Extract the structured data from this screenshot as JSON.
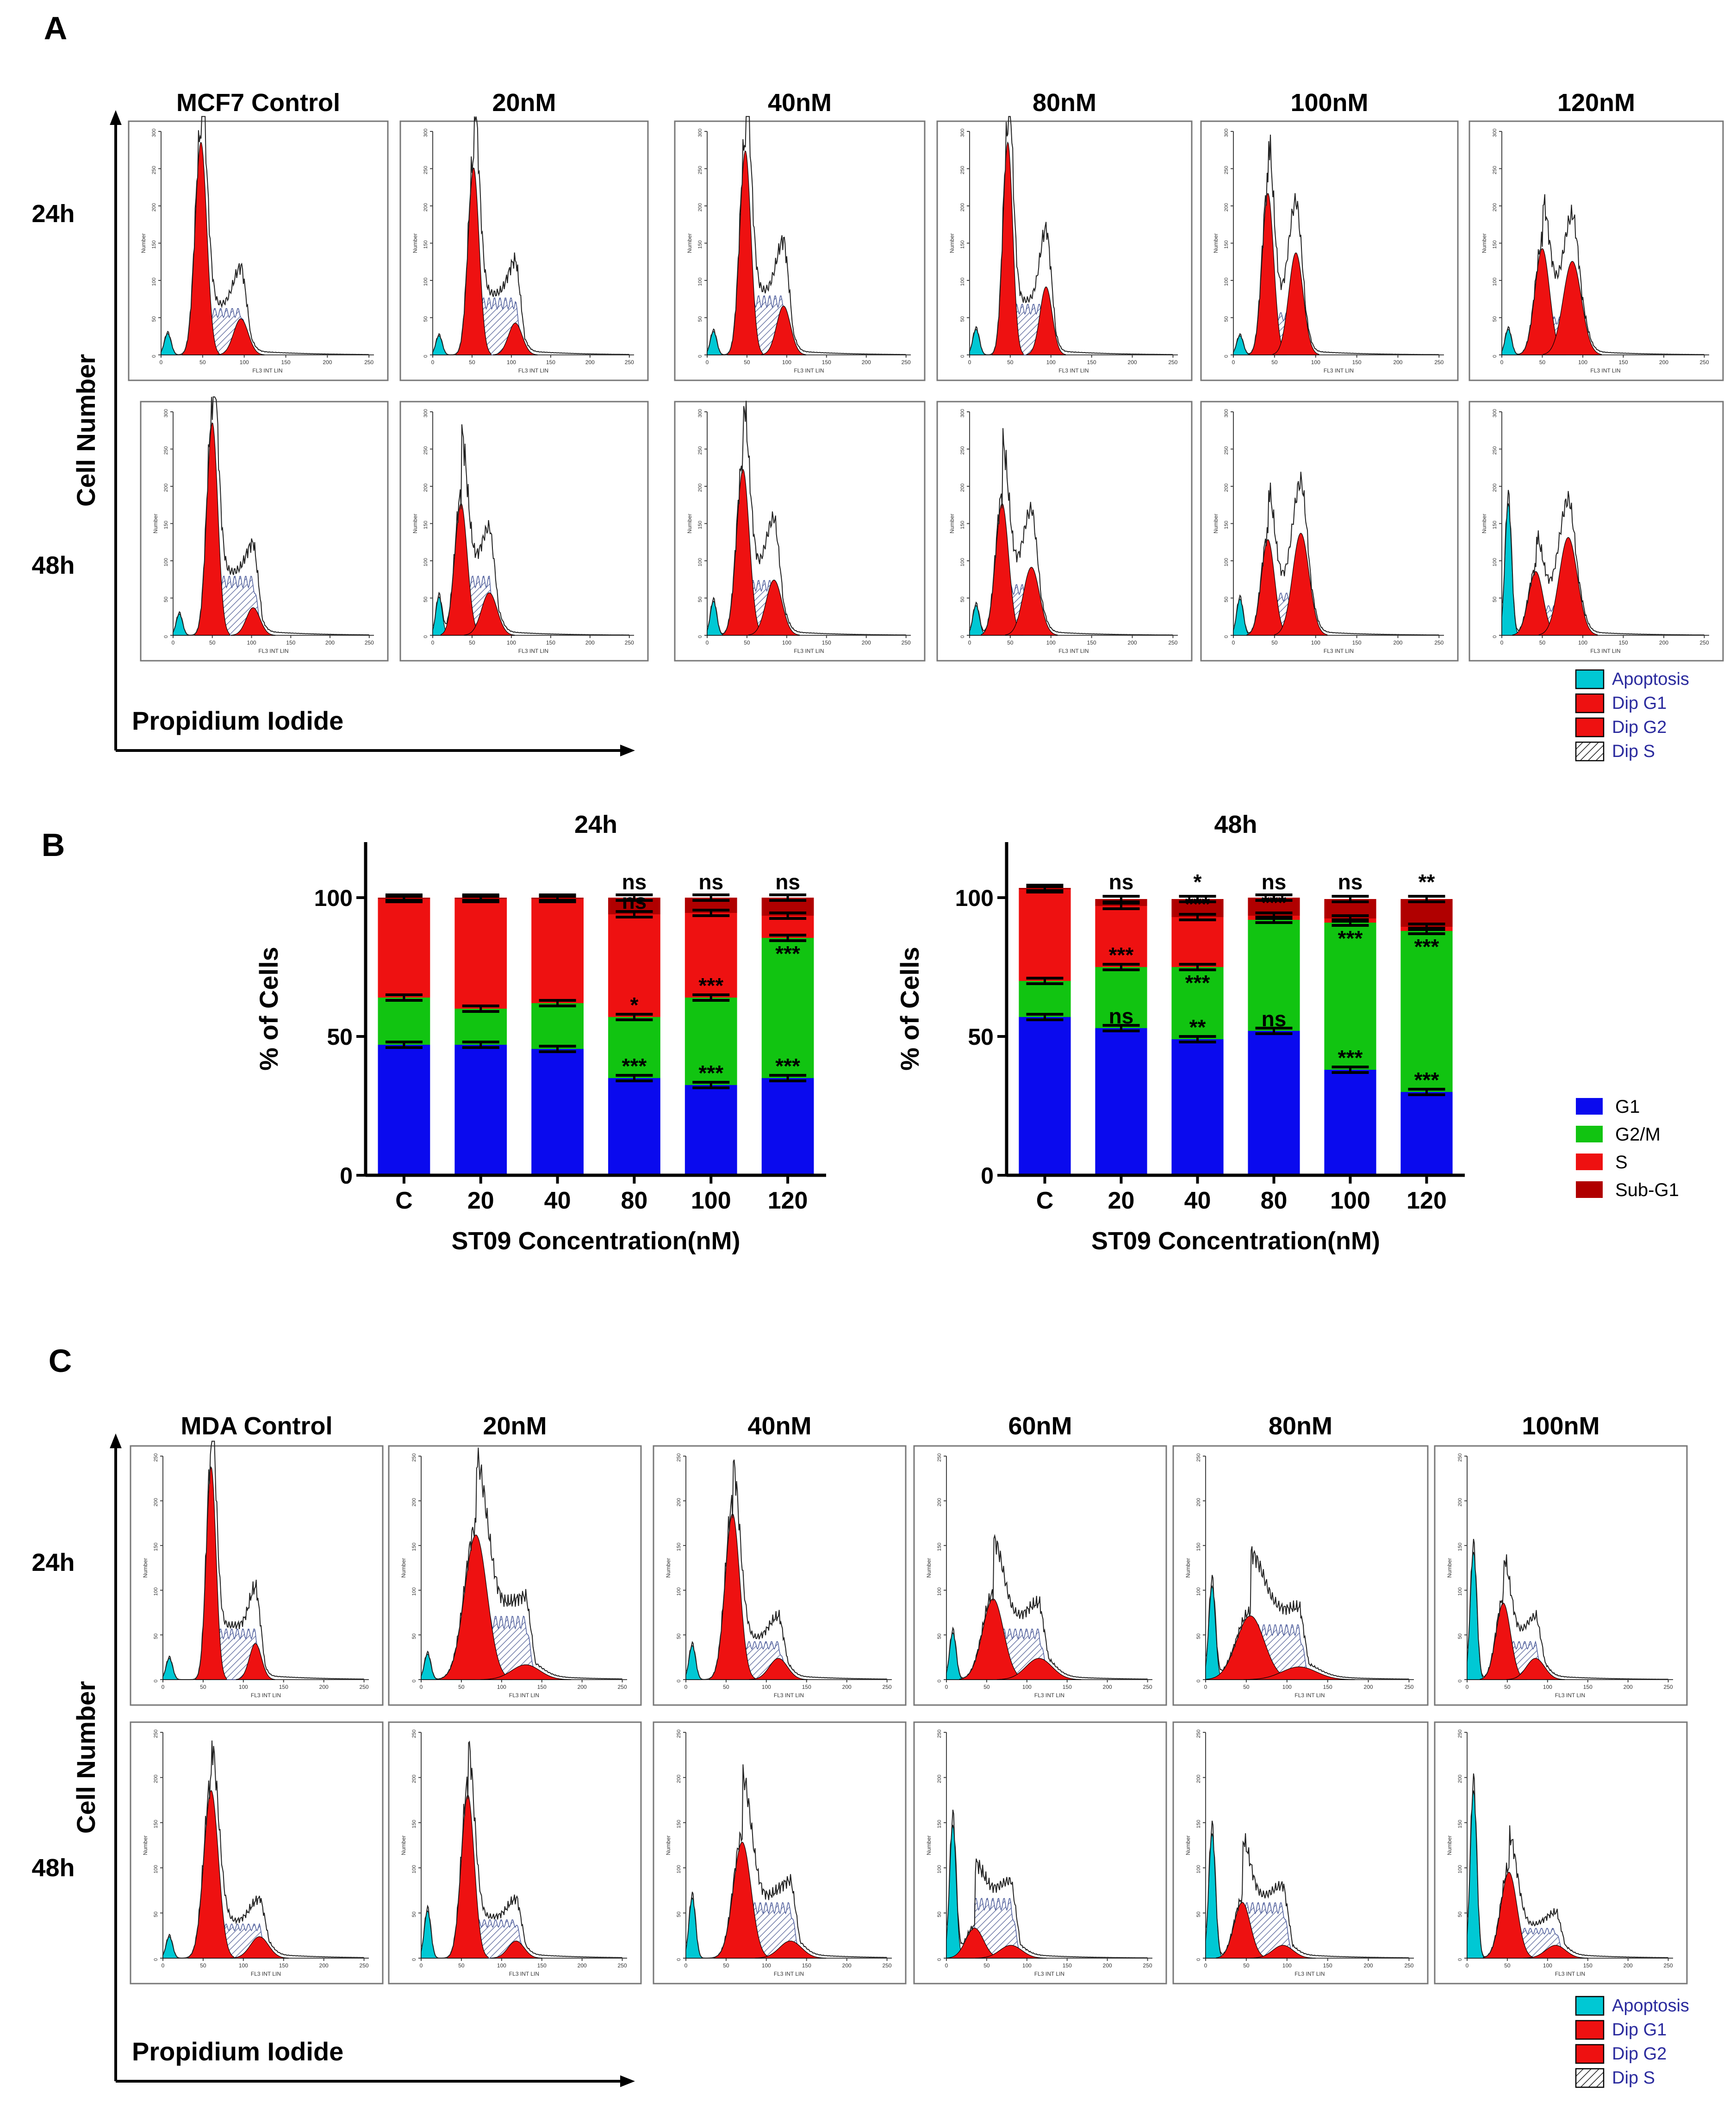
{
  "figure": {
    "panel_letters": [
      "A",
      "B",
      "C"
    ],
    "panel_a": {
      "column_titles": [
        "MCF7 Control",
        "20nM",
        "40nM",
        "80nM",
        "100nM",
        "120nM"
      ],
      "row_labels": [
        "24h",
        "48h"
      ],
      "y_axis_label": "Cell Number",
      "x_axis_label": "Propidium Iodide",
      "histogram_x_label": "FL3 INT LIN",
      "histogram_y_label": "Number",
      "histogram_x_ticks": [
        "0",
        "50",
        "100",
        "150",
        "200",
        "250"
      ],
      "histogram_y_ticks": [
        "0",
        "50",
        "100",
        "150",
        "200",
        "250",
        "300"
      ],
      "rows": [
        [
          {
            "apop": 10,
            "g1": 100,
            "g2": 17,
            "s": 22,
            "g1x": 48,
            "g2x": 96,
            "w": 7
          },
          {
            "apop": 9,
            "g1": 88,
            "g2": 15,
            "s": 27,
            "g1x": 52,
            "g2x": 105,
            "w": 7
          },
          {
            "apop": 11,
            "g1": 96,
            "g2": 23,
            "s": 28,
            "g1x": 48,
            "g2x": 96,
            "w": 7
          },
          {
            "apop": 12,
            "g1": 100,
            "g2": 32,
            "s": 24,
            "g1x": 47,
            "g2x": 94,
            "w": 6
          },
          {
            "apop": 9,
            "g1": 76,
            "g2": 48,
            "s": 20,
            "g1x": 42,
            "g2x": 76,
            "w": 7
          },
          {
            "apop": 12,
            "g1": 50,
            "g2": 44,
            "s": 18,
            "g1x": 50,
            "g2x": 87,
            "w": 9
          }
        ],
        [
          {
            "apop": 10,
            "g1": 100,
            "g2": 13,
            "s": 28,
            "g1x": 50,
            "g2x": 102,
            "w": 7
          },
          {
            "apop": 18,
            "g1": 62,
            "g2": 20,
            "s": 28,
            "g1x": 36,
            "g2x": 72,
            "w": 8
          },
          {
            "apop": 16,
            "g1": 78,
            "g2": 26,
            "s": 26,
            "g1x": 45,
            "g2x": 84,
            "w": 8
          },
          {
            "apop": 14,
            "g1": 62,
            "g2": 32,
            "s": 24,
            "g1x": 40,
            "g2x": 76,
            "w": 8
          },
          {
            "apop": 17,
            "g1": 45,
            "g2": 48,
            "s": 20,
            "g1x": 42,
            "g2x": 82,
            "w": 8
          },
          {
            "apop": 62,
            "g1": 30,
            "g2": 46,
            "s": 14,
            "g1x": 42,
            "g2x": 82,
            "w": 9
          }
        ]
      ]
    },
    "panel_c": {
      "column_titles": [
        "MDA Control",
        "20nM",
        "40nM",
        "60nM",
        "80nM",
        "100nM"
      ],
      "row_labels": [
        "24h",
        "48h"
      ],
      "y_axis_label": "Cell Number",
      "x_axis_label": "Propidium Iodide",
      "histogram_x_label": "FL3 INT LIN",
      "histogram_y_label": "Number",
      "histogram_x_ticks": [
        "0",
        "50",
        "100",
        "150",
        "200",
        "250"
      ],
      "histogram_y_ticks": [
        "0",
        "50",
        "100",
        "150",
        "200",
        "250"
      ],
      "rows": [
        [
          {
            "apop": 10,
            "g1": 100,
            "g2": 17,
            "s": 24,
            "g1x": 60,
            "g2x": 115,
            "w": 6
          },
          {
            "apop": 12,
            "g1": 68,
            "g2": 7,
            "s": 30,
            "g1x": 68,
            "g2x": 130,
            "w": 14
          },
          {
            "apop": 16,
            "g1": 78,
            "g2": 10,
            "s": 18,
            "g1x": 58,
            "g2x": 115,
            "w": 9
          },
          {
            "apop": 22,
            "g1": 38,
            "g2": 10,
            "s": 24,
            "g1x": 58,
            "g2x": 115,
            "w": 13
          },
          {
            "apop": 44,
            "g1": 30,
            "g2": 6,
            "s": 26,
            "g1x": 55,
            "g2x": 115,
            "w": 17
          },
          {
            "apop": 60,
            "g1": 36,
            "g2": 10,
            "s": 18,
            "g1x": 45,
            "g2x": 85,
            "w": 9
          }
        ],
        [
          {
            "apop": 10,
            "g1": 78,
            "g2": 10,
            "s": 16,
            "g1x": 60,
            "g2x": 120,
            "w": 9
          },
          {
            "apop": 22,
            "g1": 76,
            "g2": 8,
            "s": 18,
            "g1x": 58,
            "g2x": 118,
            "w": 8
          },
          {
            "apop": 28,
            "g1": 54,
            "g2": 8,
            "s": 26,
            "g1x": 70,
            "g2x": 130,
            "w": 11
          },
          {
            "apop": 62,
            "g1": 14,
            "g2": 6,
            "s": 28,
            "g1x": 35,
            "g2x": 80,
            "w": 11
          },
          {
            "apop": 58,
            "g1": 26,
            "g2": 6,
            "s": 26,
            "g1x": 45,
            "g2x": 95,
            "w": 10
          },
          {
            "apop": 78,
            "g1": 40,
            "g2": 6,
            "s": 14,
            "g1x": 52,
            "g2x": 110,
            "w": 10
          }
        ]
      ]
    },
    "legend_ac": [
      "Apoptosis",
      "Dip G1",
      "Dip G2",
      "Dip S"
    ],
    "legend_b": [
      "G1",
      "G2/M",
      "S",
      "Sub-G1"
    ],
    "colors": {
      "apoptosis": "#00c8d4",
      "g1_peak": "#ee1111",
      "g2_peak": "#ee1111",
      "bar_g1": "#0a0aee",
      "bar_g2m": "#11c411",
      "bar_s": "#ee1111",
      "bar_subg1": "#b00000",
      "legend_text": "#2b2b9e"
    }
  },
  "chart_data": [
    {
      "type": "bar",
      "stacked": true,
      "title": "24h",
      "xlabel": "ST09 Concentration(nM)",
      "ylabel": "% of Cells",
      "ylim": [
        0,
        120
      ],
      "yticks": [
        0,
        50,
        100
      ],
      "categories": [
        "C",
        "20",
        "40",
        "80",
        "100",
        "120"
      ],
      "series": [
        {
          "name": "G1",
          "values": [
            47,
            47,
            45.5,
            35,
            32.5,
            35
          ]
        },
        {
          "name": "G2/M",
          "values": [
            17,
            13,
            16.5,
            22,
            31.5,
            50.5
          ]
        },
        {
          "name": "S",
          "values": [
            35.5,
            39.5,
            37.5,
            37,
            30.5,
            8
          ]
        },
        {
          "name": "Sub-G1",
          "values": [
            0.5,
            0.5,
            0.5,
            6,
            5.5,
            6.5
          ]
        }
      ],
      "significance_labels": [
        {
          "category": "80",
          "series": "G1",
          "text": "***"
        },
        {
          "category": "100",
          "series": "G1",
          "text": "***"
        },
        {
          "category": "120",
          "series": "G1",
          "text": "***"
        },
        {
          "category": "80",
          "series": "G2/M",
          "text": "*"
        },
        {
          "category": "100",
          "series": "G2/M",
          "text": "***"
        },
        {
          "category": "120",
          "series": "G2/M",
          "text": "***"
        },
        {
          "category": "80",
          "series": "S",
          "text": "ns"
        },
        {
          "category": "80",
          "series": "Sub-G1",
          "text": "ns"
        },
        {
          "category": "100",
          "series": "Sub-G1",
          "text": "ns"
        },
        {
          "category": "120",
          "series": "Sub-G1",
          "text": "ns"
        }
      ]
    },
    {
      "type": "bar",
      "stacked": true,
      "title": "48h",
      "xlabel": "ST09 Concentration(nM)",
      "ylabel": "% of Cells",
      "ylim": [
        0,
        120
      ],
      "yticks": [
        0,
        50,
        100
      ],
      "categories": [
        "C",
        "20",
        "40",
        "80",
        "100",
        "120"
      ],
      "series": [
        {
          "name": "G1",
          "values": [
            57,
            53,
            49,
            52,
            38,
            30
          ]
        },
        {
          "name": "G2/M",
          "values": [
            13,
            22,
            26,
            40,
            53,
            58
          ]
        },
        {
          "name": "S",
          "values": [
            33,
            22,
            18,
            1.5,
            1.5,
            1.5
          ]
        },
        {
          "name": "Sub-G1",
          "values": [
            0.5,
            2.5,
            6.5,
            6.5,
            7,
            10
          ]
        }
      ],
      "significance_labels": [
        {
          "category": "20",
          "series": "G1",
          "text": "ns"
        },
        {
          "category": "40",
          "series": "G1",
          "text": "**"
        },
        {
          "category": "80",
          "series": "G1",
          "text": "ns"
        },
        {
          "category": "100",
          "series": "G1",
          "text": "***"
        },
        {
          "category": "120",
          "series": "G1",
          "text": "***"
        },
        {
          "category": "20",
          "series": "G2/M",
          "text": "***"
        },
        {
          "category": "40",
          "series": "G2/M",
          "text": "***"
        },
        {
          "category": "100",
          "series": "G2/M",
          "text": "***"
        },
        {
          "category": "120",
          "series": "G2/M",
          "text": "***"
        },
        {
          "category": "40",
          "series": "S",
          "text": "***"
        },
        {
          "category": "80",
          "series": "S",
          "text": "***"
        },
        {
          "category": "20",
          "series": "Sub-G1",
          "text": "ns"
        },
        {
          "category": "40",
          "series": "Sub-G1",
          "text": "*"
        },
        {
          "category": "80",
          "series": "Sub-G1",
          "text": "ns"
        },
        {
          "category": "100",
          "series": "Sub-G1",
          "text": "ns"
        },
        {
          "category": "120",
          "series": "Sub-G1",
          "text": "**"
        }
      ]
    }
  ]
}
